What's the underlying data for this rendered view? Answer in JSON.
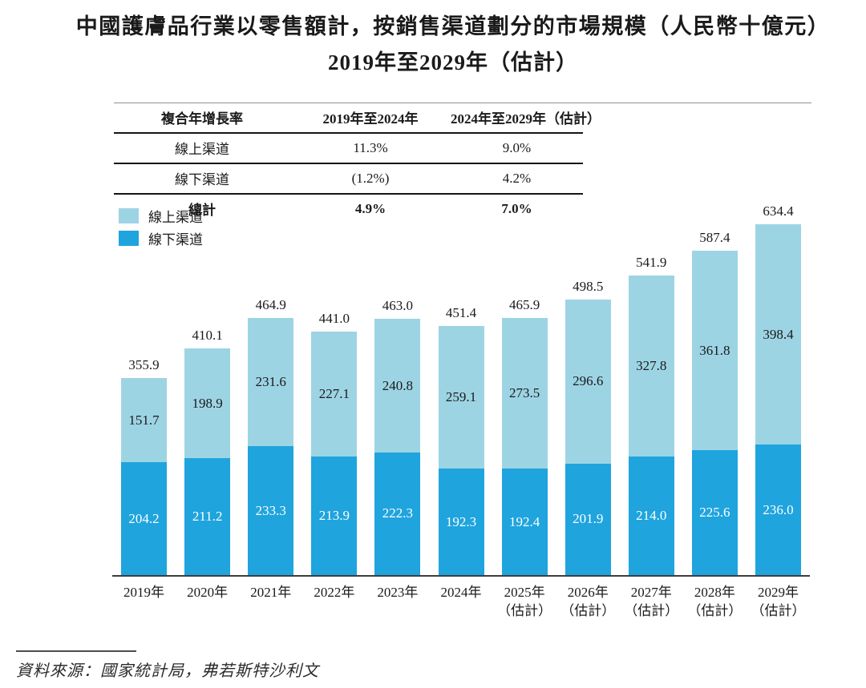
{
  "title": {
    "line1": "中國護膚品行業以零售額計，按銷售渠道劃分的市場規模（人民幣十億元）",
    "line2": "2019年至2029年（估計）"
  },
  "cagr_table": {
    "headers": [
      "複合年增長率",
      "2019年至2024年",
      "2024年至2029年（估計）"
    ],
    "rows": [
      {
        "label": "線上渠道",
        "v1": "11.3%",
        "v2": "9.0%",
        "bold": false
      },
      {
        "label": "線下渠道",
        "v1": "(1.2%)",
        "v2": "4.2%",
        "bold": false
      },
      {
        "label": "總計",
        "v1": "4.9%",
        "v2": "7.0%",
        "bold": true
      }
    ]
  },
  "legend": [
    {
      "label": "線上渠道",
      "color": "#9DD4E4"
    },
    {
      "label": "線下渠道",
      "color": "#1FA4DD"
    }
  ],
  "chart_data": {
    "type": "bar",
    "stacked": true,
    "title": "中國護膚品行業以零售額計，按銷售渠道劃分的市場規模（人民幣十億元）2019年至2029年（估計）",
    "unit": "人民幣十億元",
    "legend_position": "top-left",
    "grid": false,
    "categories": [
      {
        "year": "2019年",
        "note": ""
      },
      {
        "year": "2020年",
        "note": ""
      },
      {
        "year": "2021年",
        "note": ""
      },
      {
        "year": "2022年",
        "note": ""
      },
      {
        "year": "2023年",
        "note": ""
      },
      {
        "year": "2024年",
        "note": ""
      },
      {
        "year": "2025年",
        "note": "（估計）"
      },
      {
        "year": "2026年",
        "note": "（估計）"
      },
      {
        "year": "2027年",
        "note": "（估計）"
      },
      {
        "year": "2028年",
        "note": "（估計）"
      },
      {
        "year": "2029年",
        "note": "（估計）"
      }
    ],
    "series": [
      {
        "name": "線上渠道",
        "color": "#9DD4E4",
        "label_color": "#1a1a1a",
        "values": [
          151.7,
          198.9,
          231.6,
          227.1,
          240.8,
          259.1,
          273.5,
          296.6,
          327.8,
          361.8,
          398.4
        ]
      },
      {
        "name": "線下渠道",
        "color": "#1FA4DD",
        "label_color": "#ffffff",
        "values": [
          204.2,
          211.2,
          233.3,
          213.9,
          222.3,
          192.3,
          192.4,
          201.9,
          214.0,
          225.6,
          236.0
        ]
      }
    ],
    "totals": [
      355.9,
      410.1,
      464.9,
      441.0,
      463.0,
      451.4,
      465.9,
      498.5,
      541.9,
      587.4,
      634.4
    ]
  },
  "colors": {
    "online": "#9DD4E4",
    "offline": "#1FA4DD",
    "axis": "#3d3d3d"
  },
  "source": {
    "text": "資料來源：國家統計局，弗若斯特沙利文"
  }
}
